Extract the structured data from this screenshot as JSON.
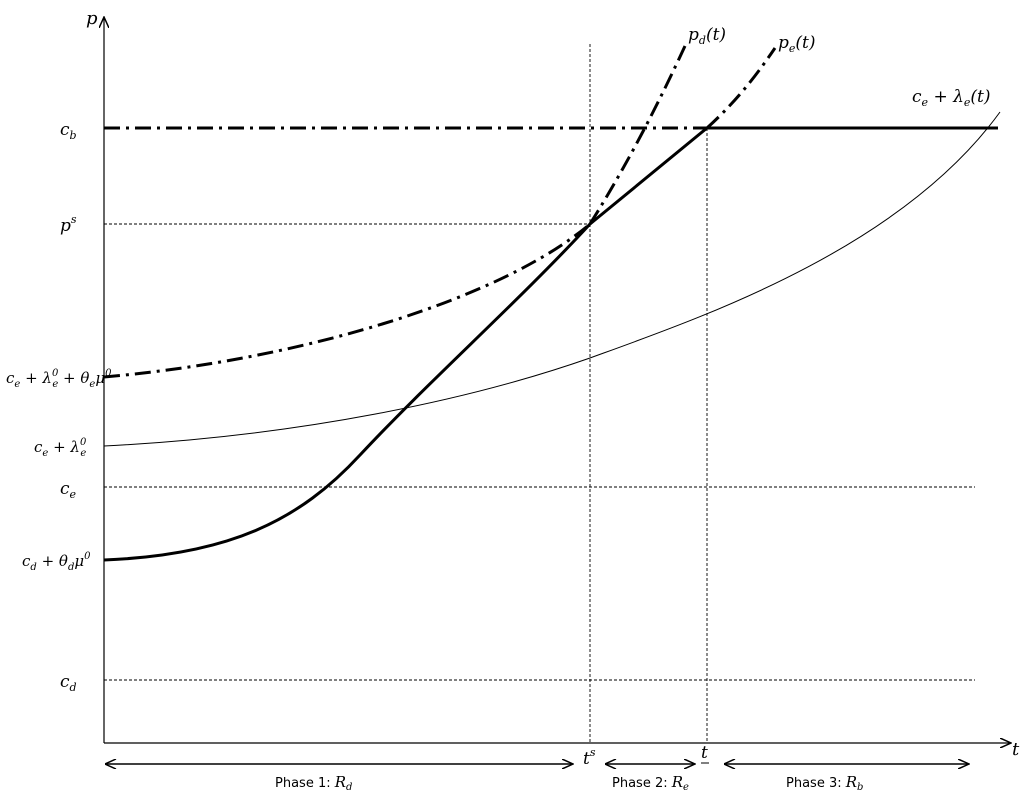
{
  "axes": {
    "y_label": "p",
    "x_label": "t"
  },
  "y_ticks": {
    "c_b": "c",
    "c_b_sub": "b",
    "p_s": "p",
    "p_s_sup": "s",
    "upper_start": "c",
    "upper_start_sub1": "e",
    "upper_start_plus1": " + λ",
    "upper_start_sup1": "0",
    "upper_start_sub2": "e",
    "upper_start_plus2": " + θ",
    "upper_start_sub3": "e",
    "upper_start_mu": "μ",
    "upper_start_sup2": "0",
    "mid_start": "c",
    "mid_start_sub1": "e",
    "mid_start_plus": " + λ",
    "mid_start_sup": "0",
    "mid_start_sub2": "e",
    "c_e": "c",
    "c_e_sub": "e",
    "lower_start": "c",
    "lower_start_sub1": "d",
    "lower_start_plus": " + θ",
    "lower_start_sub2": "d",
    "lower_start_mu": "μ",
    "lower_start_sup": "0",
    "c_d": "c",
    "c_d_sub": "d"
  },
  "x_ticks": {
    "t_s": "t",
    "t_s_sup": "s",
    "t_under": "t"
  },
  "curve_labels": {
    "pd_main": "p",
    "pd_sub": "d",
    "pd_arg": "(t)",
    "pe_main": "p",
    "pe_sub": "e",
    "pe_arg": "(t)",
    "lambda_main": "c",
    "lambda_sub1": "e",
    "lambda_plus": " + λ",
    "lambda_sub2": "e",
    "lambda_arg": "(t)"
  },
  "phases": [
    {
      "label": "Phase 1:  ",
      "sym": "R",
      "sub": "d"
    },
    {
      "label": "Phase 2: ",
      "sym": "R",
      "sub": "e"
    },
    {
      "label": "Phase 3: ",
      "sym": "R",
      "sub": "b"
    }
  ]
}
